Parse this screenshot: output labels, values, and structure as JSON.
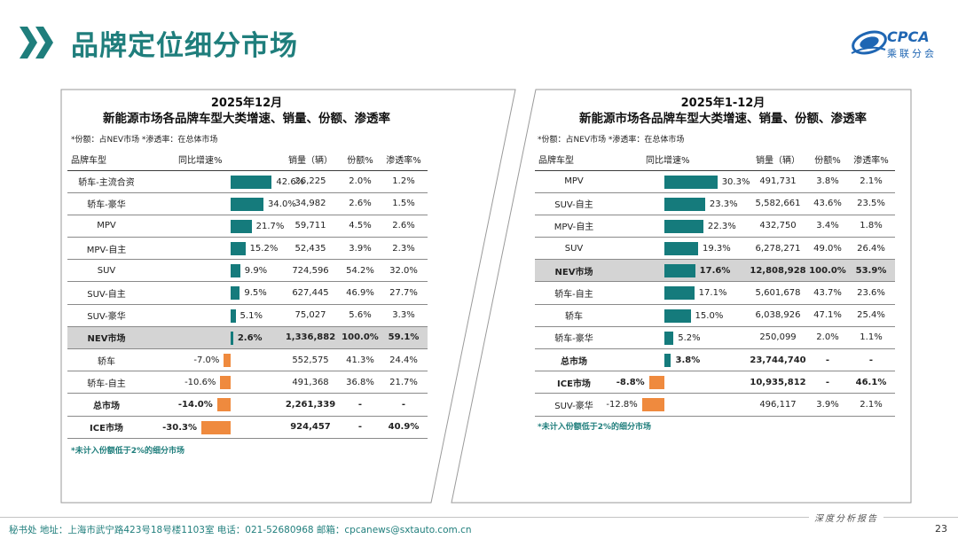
{
  "header": {
    "title": "品牌定位细分市场",
    "logo_text": "CPCA",
    "logo_subtitle": "乘联分会"
  },
  "footer": {
    "address": "秘书处   地址：上海市武宁路423号18号楼1103室  电话：021-52680968   邮箱：cpcanews@sxtauto.com.cn",
    "report_tag": "深度分析报告",
    "page_number": "23"
  },
  "colors": {
    "accent": "#1f7e7c",
    "bar_positive": "#157b7c",
    "bar_negative": "#ef8a3e",
    "highlight_row": "#d4d4d4",
    "logo_blue": "#1f66b3"
  },
  "chart_data": [
    {
      "type": "table",
      "period": "2025年12月",
      "title": "新能源市场各品牌车型大类增速、销量、份额、渗透率",
      "note": "*份额：占NEV市场   *渗透率：在总体市场",
      "footnote": "*未计入份额低于2%的细分市场",
      "columns": [
        "品牌车型",
        "同比增速%",
        "销量（辆）",
        "份额%",
        "渗透率%"
      ],
      "bar_range": [
        -30.3,
        42.6
      ],
      "rows": [
        {
          "name": "轿车-主流合资",
          "growth": 42.6,
          "growth_label": "42.6%",
          "sales": "26,225",
          "share": "2.0%",
          "penetration": "1.2%"
        },
        {
          "name": "轿车-豪华",
          "growth": 34.0,
          "growth_label": "34.0%",
          "sales": "34,982",
          "share": "2.6%",
          "penetration": "1.5%"
        },
        {
          "name": "MPV",
          "growth": 21.7,
          "growth_label": "21.7%",
          "sales": "59,711",
          "share": "4.5%",
          "penetration": "2.6%"
        },
        {
          "name": "MPV-自主",
          "growth": 15.2,
          "growth_label": "15.2%",
          "sales": "52,435",
          "share": "3.9%",
          "penetration": "2.3%"
        },
        {
          "name": "SUV",
          "growth": 9.9,
          "growth_label": "9.9%",
          "sales": "724,596",
          "share": "54.2%",
          "penetration": "32.0%"
        },
        {
          "name": "SUV-自主",
          "growth": 9.5,
          "growth_label": "9.5%",
          "sales": "627,445",
          "share": "46.9%",
          "penetration": "27.7%"
        },
        {
          "name": "SUV-豪华",
          "growth": 5.1,
          "growth_label": "5.1%",
          "sales": "75,027",
          "share": "5.6%",
          "penetration": "3.3%"
        },
        {
          "name": "NEV市场",
          "growth": 2.6,
          "growth_label": "2.6%",
          "sales": "1,336,882",
          "share": "100.0%",
          "penetration": "59.1%",
          "highlight": true,
          "bold": true
        },
        {
          "name": "轿车",
          "growth": -7.0,
          "growth_label": "-7.0%",
          "sales": "552,575",
          "share": "41.3%",
          "penetration": "24.4%"
        },
        {
          "name": "轿车-自主",
          "growth": -10.6,
          "growth_label": "-10.6%",
          "sales": "491,368",
          "share": "36.8%",
          "penetration": "21.7%"
        },
        {
          "name": "总市场",
          "growth": -14.0,
          "growth_label": "-14.0%",
          "sales": "2,261,339",
          "share": "-",
          "penetration": "-",
          "bold": true
        },
        {
          "name": "ICE市场",
          "growth": -30.3,
          "growth_label": "-30.3%",
          "sales": "924,457",
          "share": "-",
          "penetration": "40.9%",
          "bold": true
        }
      ]
    },
    {
      "type": "table",
      "period": "2025年1-12月",
      "title": "新能源市场各品牌车型大类增速、销量、份额、渗透率",
      "note": "*份额：占NEV市场   *渗透率：在总体市场",
      "footnote": "*未计入份额低于2%的细分市场",
      "columns": [
        "品牌车型",
        "同比增速%",
        "销量（辆）",
        "份额%",
        "渗透率%"
      ],
      "bar_range": [
        -12.8,
        30.3
      ],
      "rows": [
        {
          "name": "MPV",
          "growth": 30.3,
          "growth_label": "30.3%",
          "sales": "491,731",
          "share": "3.8%",
          "penetration": "2.1%"
        },
        {
          "name": "SUV-自主",
          "growth": 23.3,
          "growth_label": "23.3%",
          "sales": "5,582,661",
          "share": "43.6%",
          "penetration": "23.5%"
        },
        {
          "name": "MPV-自主",
          "growth": 22.3,
          "growth_label": "22.3%",
          "sales": "432,750",
          "share": "3.4%",
          "penetration": "1.8%"
        },
        {
          "name": "SUV",
          "growth": 19.3,
          "growth_label": "19.3%",
          "sales": "6,278,271",
          "share": "49.0%",
          "penetration": "26.4%"
        },
        {
          "name": "NEV市场",
          "growth": 17.6,
          "growth_label": "17.6%",
          "sales": "12,808,928",
          "share": "100.0%",
          "penetration": "53.9%",
          "highlight": true,
          "bold": true
        },
        {
          "name": "轿车-自主",
          "growth": 17.1,
          "growth_label": "17.1%",
          "sales": "5,601,678",
          "share": "43.7%",
          "penetration": "23.6%"
        },
        {
          "name": "轿车",
          "growth": 15.0,
          "growth_label": "15.0%",
          "sales": "6,038,926",
          "share": "47.1%",
          "penetration": "25.4%"
        },
        {
          "name": "轿车-豪华",
          "growth": 5.2,
          "growth_label": "5.2%",
          "sales": "250,099",
          "share": "2.0%",
          "penetration": "1.1%"
        },
        {
          "name": "总市场",
          "growth": 3.8,
          "growth_label": "3.8%",
          "sales": "23,744,740",
          "share": "-",
          "penetration": "-",
          "bold": true
        },
        {
          "name": "ICE市场",
          "growth": -8.8,
          "growth_label": "-8.8%",
          "sales": "10,935,812",
          "share": "-",
          "penetration": "46.1%",
          "bold": true
        },
        {
          "name": "SUV-豪华",
          "growth": -12.8,
          "growth_label": "-12.8%",
          "sales": "496,117",
          "share": "3.9%",
          "penetration": "2.1%"
        }
      ]
    }
  ]
}
